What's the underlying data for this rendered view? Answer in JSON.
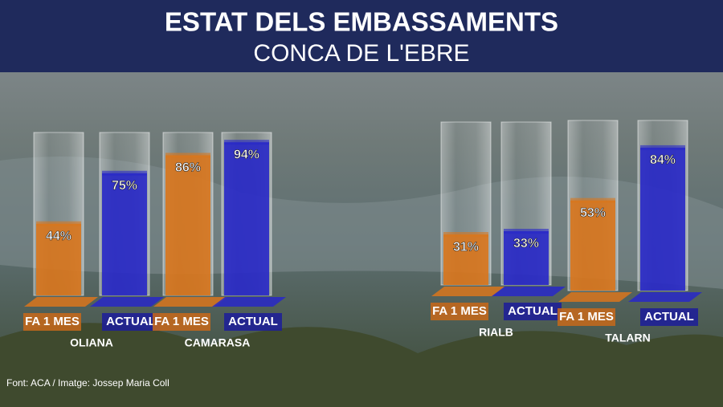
{
  "chart_data": {
    "type": "bar",
    "title": "ESTAT DELS EMBASSAMENTS",
    "subtitle": "CONCA DE L'EBRE",
    "categories": [
      "OLIANA",
      "CAMARASA",
      "RIALB",
      "TALARN"
    ],
    "series": [
      {
        "name": "FA 1 MES",
        "color": "#d9761c",
        "values": [
          44,
          86,
          31,
          53
        ],
        "value_labels": [
          "44%",
          "86%",
          "31%",
          "53%"
        ]
      },
      {
        "name": "ACTUAL",
        "color": "#2828c8",
        "values": [
          75,
          94,
          33,
          84
        ],
        "value_labels": [
          "75%",
          "94%",
          "33%",
          "84%"
        ]
      }
    ],
    "ylim": [
      0,
      100
    ],
    "source": "Font: ACA / Imatge: Jossep Maria Coll"
  }
}
